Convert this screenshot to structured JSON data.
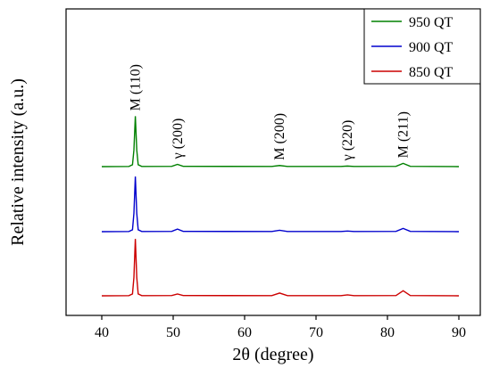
{
  "chart_data": {
    "type": "line",
    "xlabel": "2θ (degree)",
    "ylabel": "Relative intensity (a.u.)",
    "xlim": [
      35,
      93
    ],
    "xticks": [
      "40",
      "50",
      "60",
      "70",
      "80",
      "90"
    ],
    "grid": false,
    "legend_position": "top-right",
    "y_scale": "arbitrary units (offset traces)",
    "series": [
      {
        "name": "950 QT",
        "color": "#008000",
        "offset": 2,
        "points": [
          [
            40,
            0
          ],
          [
            43.8,
            0.002
          ],
          [
            44.3,
            0.02
          ],
          [
            44.5,
            0.18
          ],
          [
            44.7,
            0.55
          ],
          [
            44.9,
            0.18
          ],
          [
            45.1,
            0.02
          ],
          [
            45.6,
            0.002
          ],
          [
            49.8,
            0.003
          ],
          [
            50.6,
            0.025
          ],
          [
            51.4,
            0.003
          ],
          [
            63.8,
            0.002
          ],
          [
            64.9,
            0.012
          ],
          [
            66,
            0.002
          ],
          [
            73.5,
            0.002
          ],
          [
            74.4,
            0.006
          ],
          [
            75.3,
            0.002
          ],
          [
            81.2,
            0.003
          ],
          [
            82.2,
            0.035
          ],
          [
            83.2,
            0.003
          ],
          [
            90,
            0
          ]
        ]
      },
      {
        "name": "900 QT",
        "color": "#0000CD",
        "offset": 1,
        "points": [
          [
            40,
            0
          ],
          [
            43.8,
            0.002
          ],
          [
            44.3,
            0.02
          ],
          [
            44.5,
            0.2
          ],
          [
            44.7,
            0.6
          ],
          [
            44.9,
            0.2
          ],
          [
            45.1,
            0.02
          ],
          [
            45.6,
            0.002
          ],
          [
            49.8,
            0.003
          ],
          [
            50.6,
            0.028
          ],
          [
            51.4,
            0.003
          ],
          [
            63.8,
            0.002
          ],
          [
            64.9,
            0.015
          ],
          [
            66,
            0.002
          ],
          [
            73.5,
            0.002
          ],
          [
            74.4,
            0.007
          ],
          [
            75.3,
            0.002
          ],
          [
            81.2,
            0.003
          ],
          [
            82.2,
            0.035
          ],
          [
            83.2,
            0.003
          ],
          [
            90,
            0
          ]
        ]
      },
      {
        "name": "850 QT",
        "color": "#CC0000",
        "offset": 0,
        "points": [
          [
            40,
            0
          ],
          [
            43.8,
            0.002
          ],
          [
            44.3,
            0.02
          ],
          [
            44.5,
            0.2
          ],
          [
            44.7,
            0.62
          ],
          [
            44.9,
            0.2
          ],
          [
            45.1,
            0.02
          ],
          [
            45.6,
            0.002
          ],
          [
            49.8,
            0.003
          ],
          [
            50.6,
            0.02
          ],
          [
            51.4,
            0.003
          ],
          [
            63.8,
            0.002
          ],
          [
            64.9,
            0.03
          ],
          [
            66,
            0.002
          ],
          [
            73.5,
            0.002
          ],
          [
            74.4,
            0.01
          ],
          [
            75.3,
            0.002
          ],
          [
            81.2,
            0.003
          ],
          [
            82.2,
            0.055
          ],
          [
            83.2,
            0.003
          ],
          [
            90,
            0
          ]
        ]
      }
    ],
    "annotations": [
      {
        "text": "M (110)",
        "x": 44.7
      },
      {
        "text": "γ (200)",
        "x": 50.6
      },
      {
        "text": "M (200)",
        "x": 64.9
      },
      {
        "text": "γ (220)",
        "x": 74.4
      },
      {
        "text": "M (211)",
        "x": 82.2
      }
    ]
  }
}
